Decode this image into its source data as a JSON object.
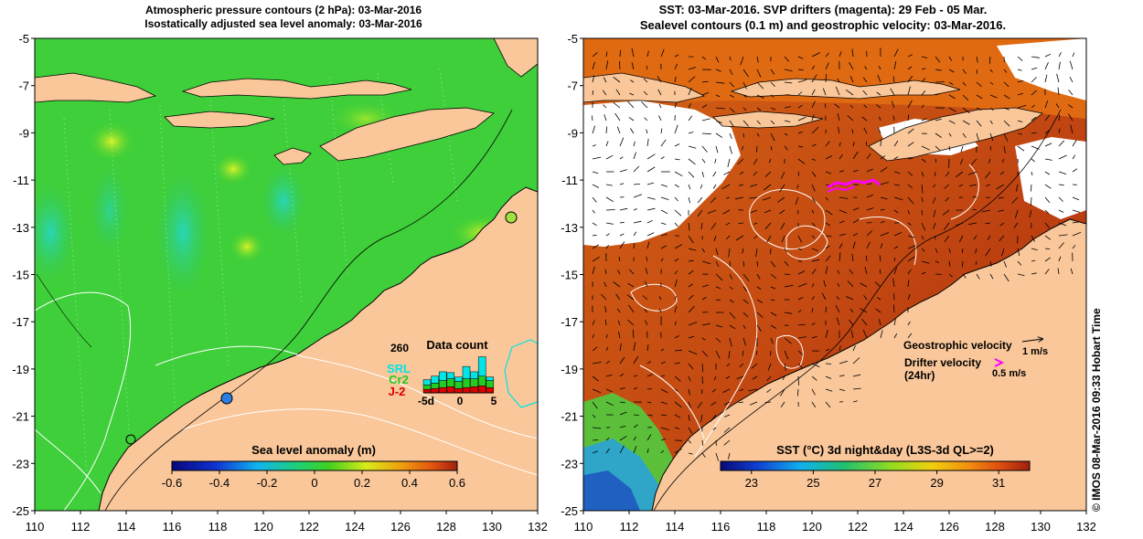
{
  "colors": {
    "land": "#f9c79a",
    "sea_green": "#3fcf3a",
    "sst_red": "#b8340f",
    "sst_orange": "#e06a12",
    "contour_white": "#ffffff",
    "drifter": "#ff00ff",
    "srl": "#00e5e5",
    "cr2": "#22cc22",
    "j2": "#dd0000"
  },
  "left_panel": {
    "title_line1": "Atmospheric pressure contours (2 hPa): 03-Mar-2016",
    "title_line2": "Isostatically adjusted sea level anomaly: 03-Mar-2016",
    "y_ticks": [
      "-5",
      "-7",
      "-9",
      "-11",
      "-13",
      "-15",
      "-17",
      "-19",
      "-21",
      "-23",
      "-25"
    ],
    "x_ticks": [
      "110",
      "112",
      "114",
      "116",
      "118",
      "120",
      "122",
      "124",
      "126",
      "128",
      "130",
      "132"
    ],
    "colorbar": {
      "label": "Sea level anomaly (m)",
      "ticks": [
        "-0.6",
        "-0.4",
        "-0.2",
        "0",
        "0.2",
        "0.4",
        "0.6"
      ],
      "range": [
        -0.6,
        0.6
      ]
    },
    "data_count": {
      "title": "Data count",
      "max_label": "260",
      "legend": [
        "SRL",
        "Cr2",
        "J-2"
      ],
      "x_labels": [
        "-5d",
        "0",
        "5"
      ],
      "days": [
        -5,
        -4,
        -3,
        -2,
        -1,
        0,
        1,
        2,
        3
      ],
      "srl": [
        30,
        40,
        50,
        35,
        25,
        70,
        40,
        110,
        20
      ],
      "cr2": [
        25,
        30,
        40,
        45,
        40,
        50,
        45,
        55,
        40
      ],
      "j2": [
        20,
        25,
        30,
        35,
        25,
        30,
        35,
        40,
        30
      ]
    }
  },
  "right_panel": {
    "title_line1": "SST: 03-Mar-2016. SVP drifters (magenta): 29 Feb - 05 Mar.",
    "title_line2": "Sealevel contours (0.1 m) and geostrophic velocity: 03-Mar-2016.",
    "y_ticks": [
      "-5",
      "-7",
      "-9",
      "-11",
      "-13",
      "-15",
      "-17",
      "-19",
      "-21",
      "-23",
      "-25"
    ],
    "x_ticks": [
      "110",
      "112",
      "114",
      "116",
      "118",
      "120",
      "122",
      "124",
      "126",
      "128",
      "130",
      "132"
    ],
    "colorbar": {
      "label": "SST (°C) 3d night&day (L3S-3d QL>=2)",
      "ticks": [
        "23",
        "25",
        "27",
        "29",
        "31"
      ],
      "range": [
        22,
        32
      ]
    },
    "velocity_legend": {
      "geostrophic": "Geostrophic velocity",
      "geostrophic_scale": "1 m/s",
      "drifter_line1": "Drifter velocity",
      "drifter_line2": "(24hr)",
      "drifter_scale": "0.5 m/s"
    }
  },
  "credit": "© IMOS 08-Mar-2016 09:33 Hobart Time"
}
